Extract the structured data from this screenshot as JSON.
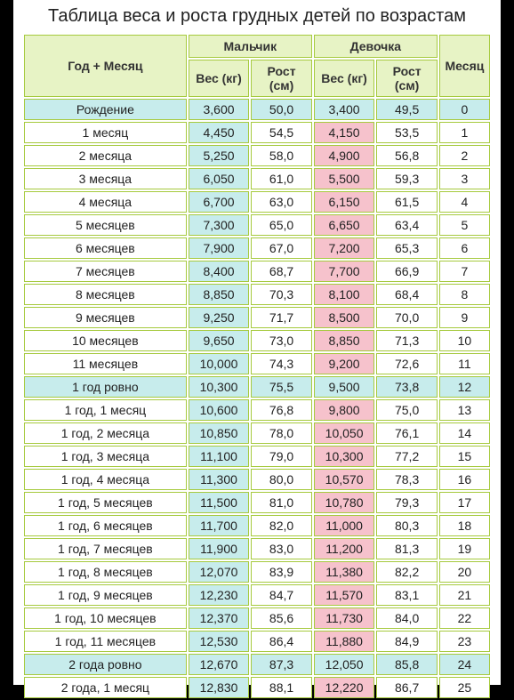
{
  "title": "Таблица веса и роста грудных детей по возрастам",
  "colors": {
    "page_bg": "#ffffff",
    "outer_bg": "#000000",
    "header_bg": "#e7f3c5",
    "cell_border": "#a6ca3e",
    "boy_weight_bg": "#c7ecec",
    "girl_weight_bg": "#f6c2cc",
    "milestone_row_bg": "#c7ecec",
    "text": "#222222"
  },
  "columns": {
    "age": "Год + Месяц",
    "boy_group": "Мальчик",
    "girl_group": "Девочка",
    "weight": "Вес (кг)",
    "height": "Рост (см)",
    "month": "Месяц"
  },
  "rows": [
    {
      "age": "Рождение",
      "bw": "3,600",
      "bh": "50,0",
      "gw": "3,400",
      "gh": "49,5",
      "m": "0",
      "milestone": true
    },
    {
      "age": "1 месяц",
      "bw": "4,450",
      "bh": "54,5",
      "gw": "4,150",
      "gh": "53,5",
      "m": "1"
    },
    {
      "age": "2 месяца",
      "bw": "5,250",
      "bh": "58,0",
      "gw": "4,900",
      "gh": "56,8",
      "m": "2"
    },
    {
      "age": "3 месяца",
      "bw": "6,050",
      "bh": "61,0",
      "gw": "5,500",
      "gh": "59,3",
      "m": "3"
    },
    {
      "age": "4 месяца",
      "bw": "6,700",
      "bh": "63,0",
      "gw": "6,150",
      "gh": "61,5",
      "m": "4"
    },
    {
      "age": "5 месяцев",
      "bw": "7,300",
      "bh": "65,0",
      "gw": "6,650",
      "gh": "63,4",
      "m": "5"
    },
    {
      "age": "6 месяцев",
      "bw": "7,900",
      "bh": "67,0",
      "gw": "7,200",
      "gh": "65,3",
      "m": "6"
    },
    {
      "age": "7 месяцев",
      "bw": "8,400",
      "bh": "68,7",
      "gw": "7,700",
      "gh": "66,9",
      "m": "7"
    },
    {
      "age": "8 месяцев",
      "bw": "8,850",
      "bh": "70,3",
      "gw": "8,100",
      "gh": "68,4",
      "m": "8"
    },
    {
      "age": "9 месяцев",
      "bw": "9,250",
      "bh": "71,7",
      "gw": "8,500",
      "gh": "70,0",
      "m": "9"
    },
    {
      "age": "10 месяцев",
      "bw": "9,650",
      "bh": "73,0",
      "gw": "8,850",
      "gh": "71,3",
      "m": "10"
    },
    {
      "age": "11 месяцев",
      "bw": "10,000",
      "bh": "74,3",
      "gw": "9,200",
      "gh": "72,6",
      "m": "11"
    },
    {
      "age": "1 год ровно",
      "bw": "10,300",
      "bh": "75,5",
      "gw": "9,500",
      "gh": "73,8",
      "m": "12",
      "milestone": true
    },
    {
      "age": "1 год, 1 месяц",
      "bw": "10,600",
      "bh": "76,8",
      "gw": "9,800",
      "gh": "75,0",
      "m": "13"
    },
    {
      "age": "1 год, 2 месяца",
      "bw": "10,850",
      "bh": "78,0",
      "gw": "10,050",
      "gh": "76,1",
      "m": "14"
    },
    {
      "age": "1 год, 3 месяца",
      "bw": "11,100",
      "bh": "79,0",
      "gw": "10,300",
      "gh": "77,2",
      "m": "15"
    },
    {
      "age": "1 год, 4 месяца",
      "bw": "11,300",
      "bh": "80,0",
      "gw": "10,570",
      "gh": "78,3",
      "m": "16"
    },
    {
      "age": "1 год, 5 месяцев",
      "bw": "11,500",
      "bh": "81,0",
      "gw": "10,780",
      "gh": "79,3",
      "m": "17"
    },
    {
      "age": "1 год, 6 месяцев",
      "bw": "11,700",
      "bh": "82,0",
      "gw": "11,000",
      "gh": "80,3",
      "m": "18"
    },
    {
      "age": "1 год, 7 месяцев",
      "bw": "11,900",
      "bh": "83,0",
      "gw": "11,200",
      "gh": "81,3",
      "m": "19"
    },
    {
      "age": "1 год, 8 месяцев",
      "bw": "12,070",
      "bh": "83,9",
      "gw": "11,380",
      "gh": "82,2",
      "m": "20"
    },
    {
      "age": "1 год, 9 месяцев",
      "bw": "12,230",
      "bh": "84,7",
      "gw": "11,570",
      "gh": "83,1",
      "m": "21"
    },
    {
      "age": "1 год, 10 месяцев",
      "bw": "12,370",
      "bh": "85,6",
      "gw": "11,730",
      "gh": "84,0",
      "m": "22"
    },
    {
      "age": "1 год, 11 месяцев",
      "bw": "12,530",
      "bh": "86,4",
      "gw": "11,880",
      "gh": "84,9",
      "m": "23"
    },
    {
      "age": "2 года ровно",
      "bw": "12,670",
      "bh": "87,3",
      "gw": "12,050",
      "gh": "85,8",
      "m": "24",
      "milestone": true
    },
    {
      "age": "2 года, 1 месяц",
      "bw": "12,830",
      "bh": "88,1",
      "gw": "12,220",
      "gh": "86,7",
      "m": "25"
    }
  ],
  "col_widths": {
    "age": "32%",
    "val": "12%",
    "month": "10%"
  }
}
